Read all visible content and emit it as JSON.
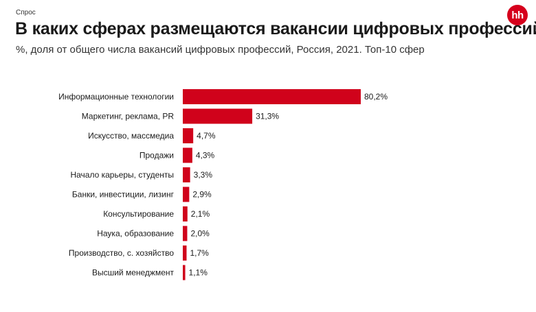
{
  "header": {
    "section": "Спрос",
    "title": "В каких сферах размещаются вакансии цифровых профессий",
    "subtitle": "%, доля от общего числа вакансий цифровых профессий, Россия, 2021. Топ-10 сфер",
    "logo_text": "hh"
  },
  "colors": {
    "bar": "#d0021b",
    "logo": "#d6001c"
  },
  "chart_data": {
    "type": "bar",
    "orientation": "horizontal",
    "categories": [
      "Информационные технологии",
      "Маркетинг, реклама, PR",
      "Искусство, массмедиа",
      "Продажи",
      "Начало карьеры, студенты",
      "Банки, инвестиции, лизинг",
      "Консультирование",
      "Наука, образование",
      "Производство, с. хозяйство",
      "Высший менеджмент"
    ],
    "values": [
      80.2,
      31.3,
      4.7,
      4.3,
      3.3,
      2.9,
      2.1,
      2.0,
      1.7,
      1.1
    ],
    "value_labels": [
      "80,2%",
      "31,3%",
      "4,7%",
      "4,3%",
      "3,3%",
      "2,9%",
      "2,1%",
      "2,0%",
      "1,7%",
      "1,1%"
    ],
    "unit": "%",
    "xlim": [
      0,
      80.2
    ],
    "grid": false,
    "legend": "none"
  }
}
